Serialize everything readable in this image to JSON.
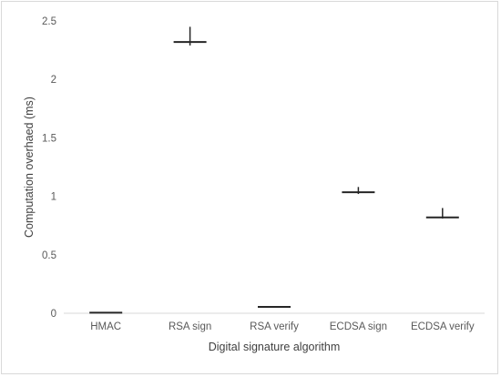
{
  "chart_data": {
    "type": "scatter",
    "mark_style": "high-low-close with horizontal mean tick",
    "title": "",
    "xlabel": "Digital signature algorithm",
    "ylabel": "Computation overhaed (ms)",
    "ylim": [
      0,
      2.5
    ],
    "yticks": [
      0,
      0.5,
      1,
      1.5,
      2,
      2.5
    ],
    "ytick_labels": [
      "0",
      "0.5",
      "1",
      "1.5",
      "2",
      "2.5"
    ],
    "grid": false,
    "legend": "none",
    "categories": [
      "HMAC",
      "RSA sign",
      "RSA verify",
      "ECDSA sign",
      "ECDSA verify"
    ],
    "series": [
      {
        "mean": [
          0.005,
          2.32,
          0.055,
          1.035,
          0.82
        ],
        "high": [
          0.008,
          2.45,
          0.06,
          1.08,
          0.9
        ],
        "low": [
          0.003,
          2.29,
          0.052,
          1.02,
          0.81
        ]
      }
    ],
    "colors": {
      "mark": "#262626",
      "axis": "#d9d9d9"
    }
  }
}
